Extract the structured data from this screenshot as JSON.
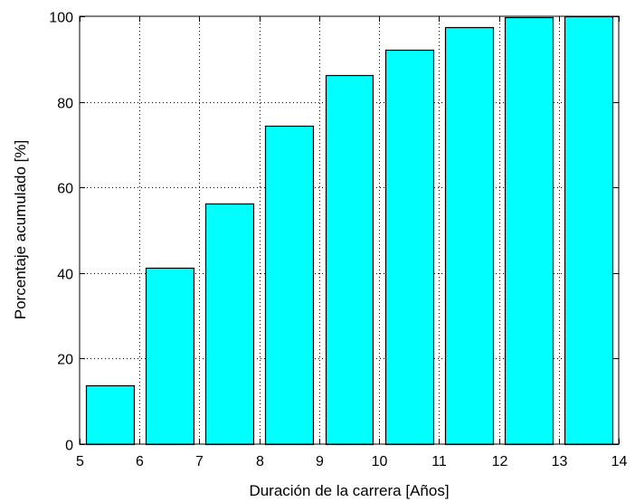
{
  "chart_data": {
    "type": "bar",
    "title": "",
    "xlabel": "Duración de la carrera [Años]",
    "ylabel": "Porcentaje acumulado [%]",
    "x": [
      5.5,
      6.5,
      7.5,
      8.5,
      9.5,
      10.5,
      11.5,
      12.5,
      13.5
    ],
    "values": [
      13.8,
      41.2,
      56.2,
      74.4,
      86.3,
      92.2,
      97.5,
      99.7,
      100
    ],
    "bin_edges": [
      5,
      6,
      7,
      8,
      9,
      10,
      11,
      12,
      13,
      14
    ],
    "xlim": [
      5,
      14
    ],
    "ylim": [
      0,
      100
    ],
    "xticks": [
      5,
      6,
      7,
      8,
      9,
      10,
      11,
      12,
      13,
      14
    ],
    "yticks": [
      0,
      20,
      40,
      60,
      80,
      100
    ],
    "grid": true,
    "grid_style": "dotted",
    "bar_color": "#00ffff",
    "edge_color": "#000000"
  }
}
